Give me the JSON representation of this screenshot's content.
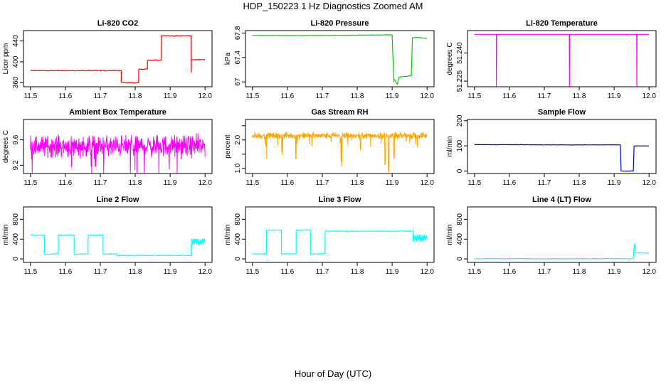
{
  "figure": {
    "title": "HDP_150223  1 Hz Diagnostics Zoomed AM",
    "xlabel": "Hour of Day (UTC)"
  },
  "chart_data": [
    {
      "type": "line",
      "title": "Li-820 CO2",
      "ylabel": "Licor ppm",
      "color": "#ff0000",
      "xlim": [
        11.48,
        12.02
      ],
      "ylim": [
        352,
        460
      ],
      "xticks": [
        11.5,
        11.6,
        11.7,
        11.8,
        11.9,
        12.0
      ],
      "yticks": [
        360,
        400,
        440
      ],
      "steps": [
        [
          11.5,
          383
        ],
        [
          11.76,
          383
        ],
        [
          11.76,
          360
        ],
        [
          11.81,
          360
        ],
        [
          11.81,
          386
        ],
        [
          11.835,
          386
        ],
        [
          11.835,
          403
        ],
        [
          11.875,
          403
        ],
        [
          11.875,
          450
        ],
        [
          11.96,
          450
        ],
        [
          11.96,
          380
        ],
        [
          11.96,
          404
        ],
        [
          12.0,
          404
        ]
      ],
      "noise": 1.2
    },
    {
      "type": "line",
      "title": "Li-820 Pressure",
      "ylabel": "kPa",
      "color": "#00cc00",
      "xlim": [
        11.48,
        12.02
      ],
      "ylim": [
        66.92,
        67.84
      ],
      "xticks": [
        11.5,
        11.6,
        11.7,
        11.8,
        11.9,
        12.0
      ],
      "yticks": [
        67.0,
        67.4,
        67.8
      ],
      "steps": [
        [
          11.5,
          67.76
        ],
        [
          11.7,
          67.76
        ],
        [
          11.9,
          67.77
        ],
        [
          11.905,
          67.0
        ],
        [
          11.905,
          67.05
        ],
        [
          11.915,
          66.96
        ],
        [
          11.92,
          67.08
        ],
        [
          11.955,
          67.1
        ],
        [
          11.958,
          67.72
        ],
        [
          11.97,
          67.73
        ],
        [
          12.0,
          67.71
        ]
      ],
      "noise": 0.004
    },
    {
      "type": "line",
      "title": "Li-820 Temperature",
      "ylabel": "degrees C",
      "color": "#ff00ff",
      "xlim": [
        11.48,
        12.02
      ],
      "ylim": [
        51.222,
        51.252
      ],
      "xticks": [
        11.5,
        11.6,
        11.7,
        11.8,
        11.9,
        12.0
      ],
      "yticks": [
        51.225,
        51.24
      ],
      "ytick_labels": [
        "51.225",
        "51.240"
      ],
      "base": 51.25,
      "spikes": [
        11.563,
        11.772,
        11.965
      ],
      "spike_low": 51.222,
      "noise": 0
    },
    {
      "type": "line",
      "title": "Ambient Box Temperature",
      "ylabel": "degrees C",
      "color": "#ff00ff",
      "xlim": [
        11.48,
        12.02
      ],
      "ylim": [
        9.07,
        9.92
      ],
      "xticks": [
        11.5,
        11.6,
        11.7,
        11.8,
        11.9,
        12.0
      ],
      "yticks": [
        9.2,
        9.6
      ],
      "base": 9.5,
      "noise": 0.15,
      "dense": true
    },
    {
      "type": "line",
      "title": "Gas Stream RH",
      "ylabel": "percent",
      "color": "#ffa500",
      "xlim": [
        11.48,
        12.02
      ],
      "ylim": [
        0.82,
        2.72
      ],
      "xticks": [
        11.5,
        11.6,
        11.7,
        11.8,
        11.9,
        12.0
      ],
      "yticks": [
        1.0,
        1.5,
        2.0,
        2.5
      ],
      "ytick_labels": [
        "1.0",
        "",
        "2.0",
        ""
      ],
      "base": 2.15,
      "noise": 0.1,
      "dense": true,
      "dips": [
        [
          11.54,
          1.3
        ],
        [
          11.585,
          1.4
        ],
        [
          11.625,
          1.2
        ],
        [
          11.755,
          1.0
        ],
        [
          11.81,
          1.5
        ],
        [
          11.88,
          0.9
        ],
        [
          11.89,
          0.85
        ],
        [
          11.905,
          1.2
        ],
        [
          11.92,
          1.6
        ]
      ]
    },
    {
      "type": "line",
      "title": "Sample Flow",
      "ylabel": "ml/min",
      "color": "#0000cc",
      "xlim": [
        11.48,
        12.02
      ],
      "ylim": [
        -10,
        205
      ],
      "xticks": [
        11.5,
        11.6,
        11.7,
        11.8,
        11.9,
        12.0
      ],
      "yticks": [
        0,
        100,
        200
      ],
      "steps": [
        [
          11.5,
          105
        ],
        [
          11.7,
          104
        ],
        [
          11.918,
          104
        ],
        [
          11.92,
          0
        ],
        [
          11.955,
          0
        ],
        [
          11.957,
          100
        ],
        [
          12.0,
          100
        ]
      ],
      "noise": 1
    },
    {
      "type": "line",
      "title": "Line 2 Flow",
      "ylabel": "ml/min",
      "color": "#00ffff",
      "xlim": [
        11.48,
        12.02
      ],
      "ylim": [
        -70,
        1050
      ],
      "xticks": [
        11.5,
        11.6,
        11.7,
        11.8,
        11.9,
        12.0
      ],
      "yticks": [
        0,
        400,
        800
      ],
      "steps": [
        [
          11.5,
          480
        ],
        [
          11.54,
          480
        ],
        [
          11.54,
          100
        ],
        [
          11.58,
          100
        ],
        [
          11.58,
          480
        ],
        [
          11.625,
          480
        ],
        [
          11.625,
          100
        ],
        [
          11.665,
          100
        ],
        [
          11.665,
          480
        ],
        [
          11.708,
          480
        ],
        [
          11.708,
          100
        ],
        [
          11.748,
          100
        ],
        [
          11.748,
          70
        ],
        [
          11.96,
          70
        ],
        [
          11.96,
          350
        ],
        [
          12.0,
          350
        ]
      ],
      "noise": 15,
      "band_after": 11.96,
      "band_width": 130
    },
    {
      "type": "line",
      "title": "Line 3 Flow",
      "ylabel": "ml/min",
      "color": "#00ffff",
      "xlim": [
        11.48,
        12.02
      ],
      "ylim": [
        -70,
        1050
      ],
      "xticks": [
        11.5,
        11.6,
        11.7,
        11.8,
        11.9,
        12.0
      ],
      "yticks": [
        0,
        400,
        800
      ],
      "steps": [
        [
          11.5,
          100
        ],
        [
          11.54,
          100
        ],
        [
          11.54,
          580
        ],
        [
          11.583,
          580
        ],
        [
          11.583,
          100
        ],
        [
          11.625,
          100
        ],
        [
          11.625,
          580
        ],
        [
          11.666,
          580
        ],
        [
          11.666,
          100
        ],
        [
          11.708,
          100
        ],
        [
          11.708,
          560
        ],
        [
          11.96,
          560
        ],
        [
          11.96,
          420
        ],
        [
          12.0,
          420
        ]
      ],
      "noise": 15,
      "band_after": 11.96,
      "band_width": 140
    },
    {
      "type": "line",
      "title": "Line 4 (LT) Flow",
      "ylabel": "ml/min",
      "color": "#00ffff",
      "xlim": [
        11.48,
        12.02
      ],
      "ylim": [
        -70,
        1050
      ],
      "xticks": [
        11.5,
        11.6,
        11.7,
        11.8,
        11.9,
        12.0
      ],
      "yticks": [
        0,
        400,
        800
      ],
      "steps": [
        [
          11.5,
          5
        ],
        [
          11.955,
          5
        ],
        [
          11.958,
          310
        ],
        [
          11.962,
          120
        ],
        [
          12.0,
          120
        ]
      ],
      "noise": 3
    }
  ]
}
